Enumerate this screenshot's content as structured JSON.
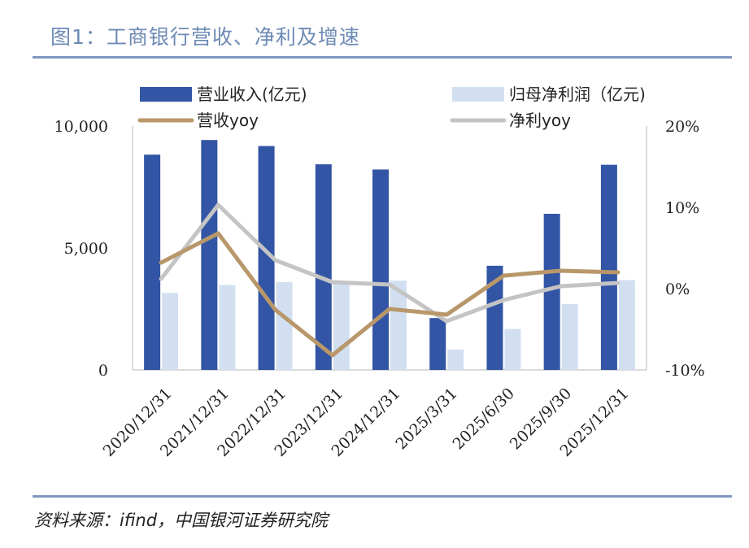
{
  "title": "图1：工商银行营收、净利及增速",
  "source": "资料来源：ifind，中国银河证券研究院",
  "colors": {
    "revenue_bar": "#3355a5",
    "profit_bar": "#d2dff1",
    "revenue_yoy": "#b8976a",
    "profit_yoy": "#c4c4c4",
    "rule": "#7f97bf",
    "title": "#6d8ab5"
  },
  "chart_data": {
    "type": "bar",
    "title": "工商银行营收、净利及增速",
    "categories": [
      "2020/12/31",
      "2021/12/31",
      "2022/12/31",
      "2023/12/31",
      "2024/12/31",
      "2025/3/31",
      "2025/6/30",
      "2025/9/30",
      "2025/12/31"
    ],
    "series": [
      {
        "name": "营业收入(亿元)",
        "kind": "bar",
        "axis": "left",
        "values": [
          8827,
          9427,
          9180,
          8431,
          8218,
          2128,
          4271,
          6401,
          8411
        ]
      },
      {
        "name": "归母净利润（亿元)",
        "kind": "bar",
        "axis": "left",
        "values": [
          3159,
          3483,
          3605,
          3640,
          3659,
          841,
          1682,
          2699,
          3685
        ]
      },
      {
        "name": "营收yoy",
        "kind": "line",
        "axis": "right",
        "values": [
          3.2,
          6.8,
          -2.6,
          -8.2,
          -2.5,
          -3.2,
          1.6,
          2.2,
          2.0
        ]
      },
      {
        "name": "净利yoy",
        "kind": "line",
        "axis": "right",
        "values": [
          1.2,
          10.3,
          3.5,
          0.8,
          0.5,
          -4.0,
          -1.4,
          0.3,
          0.7
        ]
      }
    ],
    "left_axis": {
      "min": 0,
      "max": 10000,
      "ticks": [
        0,
        5000,
        10000
      ],
      "tick_labels": [
        "0",
        "5,000",
        "10,000"
      ]
    },
    "right_axis": {
      "min": -10,
      "max": 20,
      "ticks": [
        -10,
        0,
        10,
        20
      ],
      "tick_labels": [
        "-10%",
        "0%",
        "10%",
        "20%"
      ]
    },
    "legend_position": "top"
  }
}
